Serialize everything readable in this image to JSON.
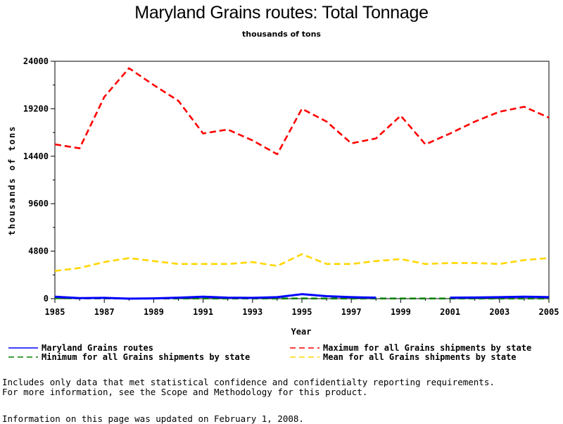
{
  "chart_data": {
    "type": "line",
    "title": "Maryland Grains routes: Total Tonnage",
    "subtitle": "thousands of tons",
    "xlabel": "Year",
    "ylabel": "thousands of tons",
    "xlim": [
      1985,
      2005
    ],
    "ylim": [
      0,
      24000
    ],
    "xticks": [
      "1985",
      "1987",
      "1989",
      "1991",
      "1993",
      "1995",
      "1997",
      "1999",
      "2001",
      "2003",
      "2005"
    ],
    "yticks": [
      "0",
      "4800",
      "9600",
      "14400",
      "19200",
      "24000"
    ],
    "grid": false,
    "legend": "bottom",
    "x": [
      1985,
      1986,
      1987,
      1988,
      1989,
      1990,
      1991,
      1992,
      1993,
      1994,
      1995,
      1996,
      1997,
      1998,
      1999,
      2000,
      2001,
      2002,
      2003,
      2004,
      2005
    ],
    "series": [
      {
        "name": "Maryland Grains routes",
        "color": "#0000ff",
        "style": "solid",
        "values": [
          200,
          50,
          80,
          0,
          30,
          100,
          200,
          100,
          80,
          150,
          450,
          250,
          150,
          100,
          null,
          null,
          100,
          120,
          150,
          200,
          150
        ]
      },
      {
        "name": "Maximum for all Grains shipments by state",
        "color": "#ff0000",
        "style": "dashed",
        "values": [
          15600,
          15200,
          20400,
          23300,
          21600,
          20000,
          16700,
          17100,
          16000,
          14600,
          19200,
          17900,
          15700,
          16200,
          18500,
          15600,
          16700,
          17900,
          18900,
          19400,
          18300
        ]
      },
      {
        "name": "Minimum for all Grains shipments by state",
        "color": "#008000",
        "style": "dashed",
        "values": [
          50,
          20,
          20,
          10,
          10,
          10,
          20,
          10,
          10,
          10,
          20,
          10,
          10,
          10,
          10,
          10,
          10,
          10,
          10,
          10,
          10
        ]
      },
      {
        "name": "Mean for all Grains shipments by state",
        "color": "#ffd700",
        "style": "dashed",
        "values": [
          2800,
          3100,
          3700,
          4100,
          3800,
          3500,
          3500,
          3500,
          3700,
          3300,
          4500,
          3500,
          3500,
          3800,
          4000,
          3500,
          3600,
          3600,
          3500,
          3900,
          4100
        ]
      }
    ]
  },
  "footnote": {
    "line1": "Includes only data that met statistical confidence and confidentialty reporting requirements.",
    "line2": "For more information, see the Scope and Methodology for this product.",
    "updated": "Information on this page was updated on February 1, 2008."
  }
}
